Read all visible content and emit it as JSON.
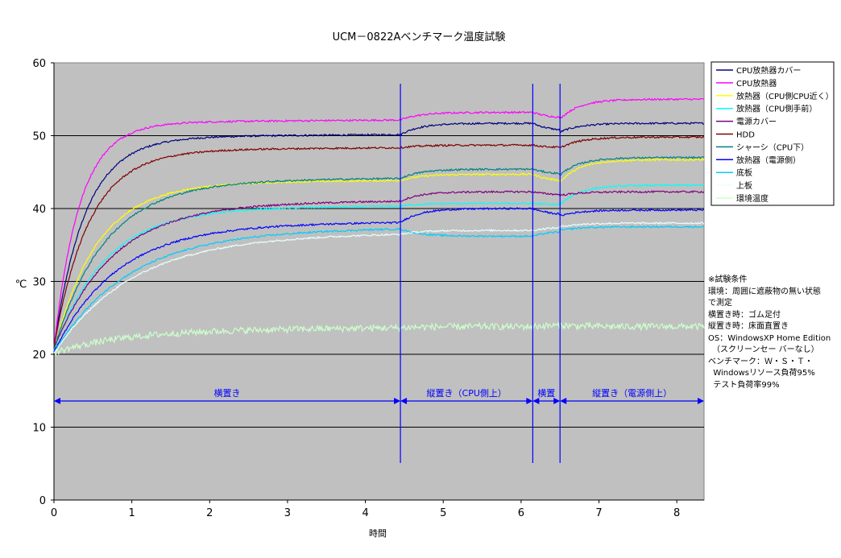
{
  "chart_data": {
    "type": "line",
    "title": "UCM－0822Aベンチマーク温度試験",
    "xlabel": "時間",
    "ylabel": "℃",
    "xlim": [
      0,
      8.35
    ],
    "ylim": [
      0,
      60
    ],
    "x_ticks": [
      "0",
      "1",
      "2",
      "3",
      "4",
      "5",
      "6",
      "7",
      "8"
    ],
    "y_ticks": [
      "0",
      "10",
      "20",
      "30",
      "40",
      "50",
      "60"
    ],
    "grid": "horizontal major",
    "legend_position": "right",
    "plot_background": "#c0c0c0",
    "series": [
      {
        "name": "CPU放熱器カバー",
        "color": "#000080",
        "start": 21,
        "t": 0.4,
        "phases": [
          49.8,
          51.7,
          50.5,
          51.7
        ]
      },
      {
        "name": "CPU放熱器",
        "color": "#ff00ff",
        "start": 21,
        "t": 0.33,
        "phases": [
          51.8,
          53.2,
          52.3,
          55.0
        ]
      },
      {
        "name": "放熱器（CPU側CPU近く）",
        "color": "#ffff00",
        "start": 20.5,
        "t": 0.55,
        "phases": [
          43.5,
          44.7,
          43.6,
          46.7
        ]
      },
      {
        "name": "放熱器（CPU側手前）",
        "color": "#00ffff",
        "start": 20.5,
        "t": 0.65,
        "phases": [
          40.0,
          40.7,
          40.5,
          43.2
        ]
      },
      {
        "name": "電源カバー",
        "color": "#800080",
        "start": 20.8,
        "t": 0.75,
        "phases": [
          40.7,
          42.3,
          41.8,
          42.3
        ]
      },
      {
        "name": "HDD",
        "color": "#800000",
        "start": 21,
        "t": 0.45,
        "phases": [
          48.0,
          48.7,
          48.3,
          49.8
        ]
      },
      {
        "name": "シャーシ（CPU下）",
        "color": "#008080",
        "start": 20.7,
        "t": 0.65,
        "phases": [
          43.8,
          45.4,
          44.6,
          47.0
        ]
      },
      {
        "name": "放熱器（電源側）",
        "color": "#0000ff",
        "start": 20.3,
        "t": 0.8,
        "phases": [
          37.8,
          40.0,
          39.0,
          39.8
        ]
      },
      {
        "name": "底板",
        "color": "#00ccff",
        "start": 20.2,
        "t": 0.95,
        "phases": [
          37.0,
          36.2,
          37.0,
          37.5
        ]
      },
      {
        "name": "上板",
        "color": "#e8ffff",
        "start": 20.1,
        "t": 1.0,
        "phases": [
          36.3,
          37.0,
          37.5,
          38.0
        ]
      },
      {
        "name": "環境温度",
        "color": "#ccffcc",
        "start": 20.2,
        "t": 0.9,
        "phases": [
          23.3,
          23.8,
          24.0,
          23.8
        ]
      }
    ],
    "phase_boundaries": [
      4.45,
      6.15,
      6.5
    ],
    "phase_annotations": [
      {
        "label": "横置き",
        "x_from": 0,
        "x_to": 4.45
      },
      {
        "label": "縦置き（CPU側上）",
        "x_from": 4.45,
        "x_to": 6.15
      },
      {
        "label": "横置",
        "x_from": 6.15,
        "x_to": 6.5
      },
      {
        "label": "縦置き（電源側上）",
        "x_from": 6.5,
        "x_to": 8.35
      }
    ],
    "annotation_color": "#0000ff"
  },
  "notes": [
    "※試験条件",
    "環境：周囲に遮蔽物の無い状態",
    "で測定",
    "横置き時：ゴム足付",
    "縦置き時：床面直置き",
    "",
    "OS：WindowsXP Home Edition",
    "　（スクリーンセー バーなし）",
    "",
    "ベンチマーク：Ｗ・Ｓ・Ｔ・",
    "  Windowsリソース負荷95%",
    "  テスト負荷率99%"
  ]
}
